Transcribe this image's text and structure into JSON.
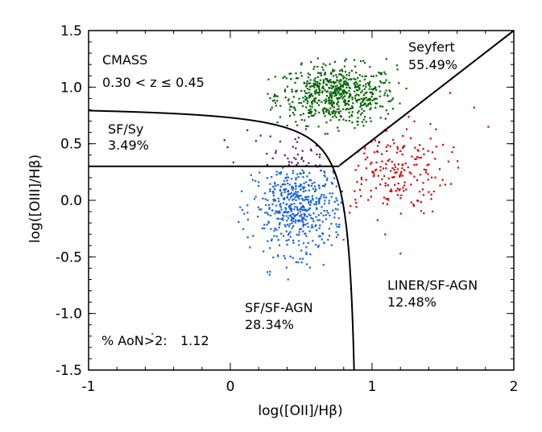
{
  "chart_data": {
    "type": "scatter",
    "title": "",
    "xlabel": "log([OII]/Hβ)",
    "ylabel": "log([OIII]/Hβ)",
    "xlim": [
      -1,
      2
    ],
    "ylim": [
      -1.5,
      1.5
    ],
    "x_ticks": [
      -1,
      0,
      1,
      2
    ],
    "x_tick_labels": [
      "-1",
      "0",
      "1",
      "2"
    ],
    "y_ticks": [
      -1.5,
      -1.0,
      -0.5,
      0.0,
      0.5,
      1.0,
      1.5
    ],
    "y_tick_labels": [
      "-1.5",
      "-1.0",
      "-0.5",
      "0.0",
      "0.5",
      "1.0",
      "1.5"
    ],
    "grid": false,
    "annotations": {
      "sample": "CMASS",
      "redshift": "0.30 < z ≤ 0.45",
      "sfsy_name": "SF/Sy",
      "sfsy_pct": "3.49%",
      "seyfert_name": "Seyfert",
      "seyfert_pct": "55.49%",
      "liner_name": "LINER/SF-AGN",
      "liner_pct": "12.48%",
      "sf_name": "SF/SF-AGN",
      "sf_pct": "28.34%",
      "aon_label": "% AoN>2:",
      "aon_value": "1.12"
    },
    "series": [
      {
        "color": "#006400",
        "approx_points": 620,
        "center": [
          0.75,
          0.93
        ],
        "spread": [
          0.21,
          0.13
        ],
        "bounds": {
          "x": [
            0.25,
            1.25
          ],
          "y": [
            0.35,
            1.3
          ]
        }
      },
      {
        "color": "#d50000",
        "approx_points": 200,
        "center": [
          1.13,
          0.27
        ],
        "spread": [
          0.2,
          0.2
        ],
        "bounds": {
          "x": [
            0.75,
            1.85
          ],
          "y": [
            -0.5,
            0.85
          ]
        }
      },
      {
        "color": "#1560e0",
        "approx_points": 500,
        "center": [
          0.48,
          -0.07
        ],
        "spread": [
          0.16,
          0.2
        ],
        "bounds": {
          "x": [
            0.05,
            0.9
          ],
          "y": [
            -0.7,
            0.3
          ]
        }
      },
      {
        "color": "#5b0f80",
        "approx_points": 40,
        "center": [
          0.5,
          0.43
        ],
        "spread": [
          0.18,
          0.08
        ],
        "bounds": {
          "x": [
            -0.05,
            0.75
          ],
          "y": [
            0.3,
            0.65
          ]
        }
      }
    ],
    "outliers": [
      {
        "x": -0.55,
        "y": -1.18,
        "color": "#1560e0"
      },
      {
        "x": 0.85,
        "y": -0.78,
        "color": "#1560e0"
      },
      {
        "x": 1.55,
        "y": 0.95,
        "color": "#d50000"
      },
      {
        "x": 1.72,
        "y": 0.82,
        "color": "#d50000"
      },
      {
        "x": 1.82,
        "y": 0.65,
        "color": "#d50000"
      },
      {
        "x": 1.2,
        "y": -0.47,
        "color": "#d50000"
      },
      {
        "x": 1.1,
        "y": 1.25,
        "color": "#006400"
      },
      {
        "x": 0.3,
        "y": 0.88,
        "color": "#006400"
      },
      {
        "x": 0.5,
        "y": 1.2,
        "color": "#006400"
      },
      {
        "x": 0.28,
        "y": -0.63,
        "color": "#1560e0"
      },
      {
        "x": 0.08,
        "y": 0.08,
        "color": "#1560e0"
      },
      {
        "x": -0.02,
        "y": 0.47,
        "color": "#5b0f80"
      },
      {
        "x": 0.12,
        "y": 0.62,
        "color": "#5b0f80"
      }
    ],
    "boundaries": {
      "sf_curve": "y = 0.11/(x - 0.92) + 0.85",
      "sf_curve_x": [
        -1,
        0.88
      ],
      "horizontal_line": {
        "y": 0.3,
        "x": [
          -1,
          0.77
        ]
      },
      "seyfert_liner_line": "y = 1.27x - 0.67",
      "seyfert_liner_x": [
        0.77,
        2
      ]
    }
  }
}
